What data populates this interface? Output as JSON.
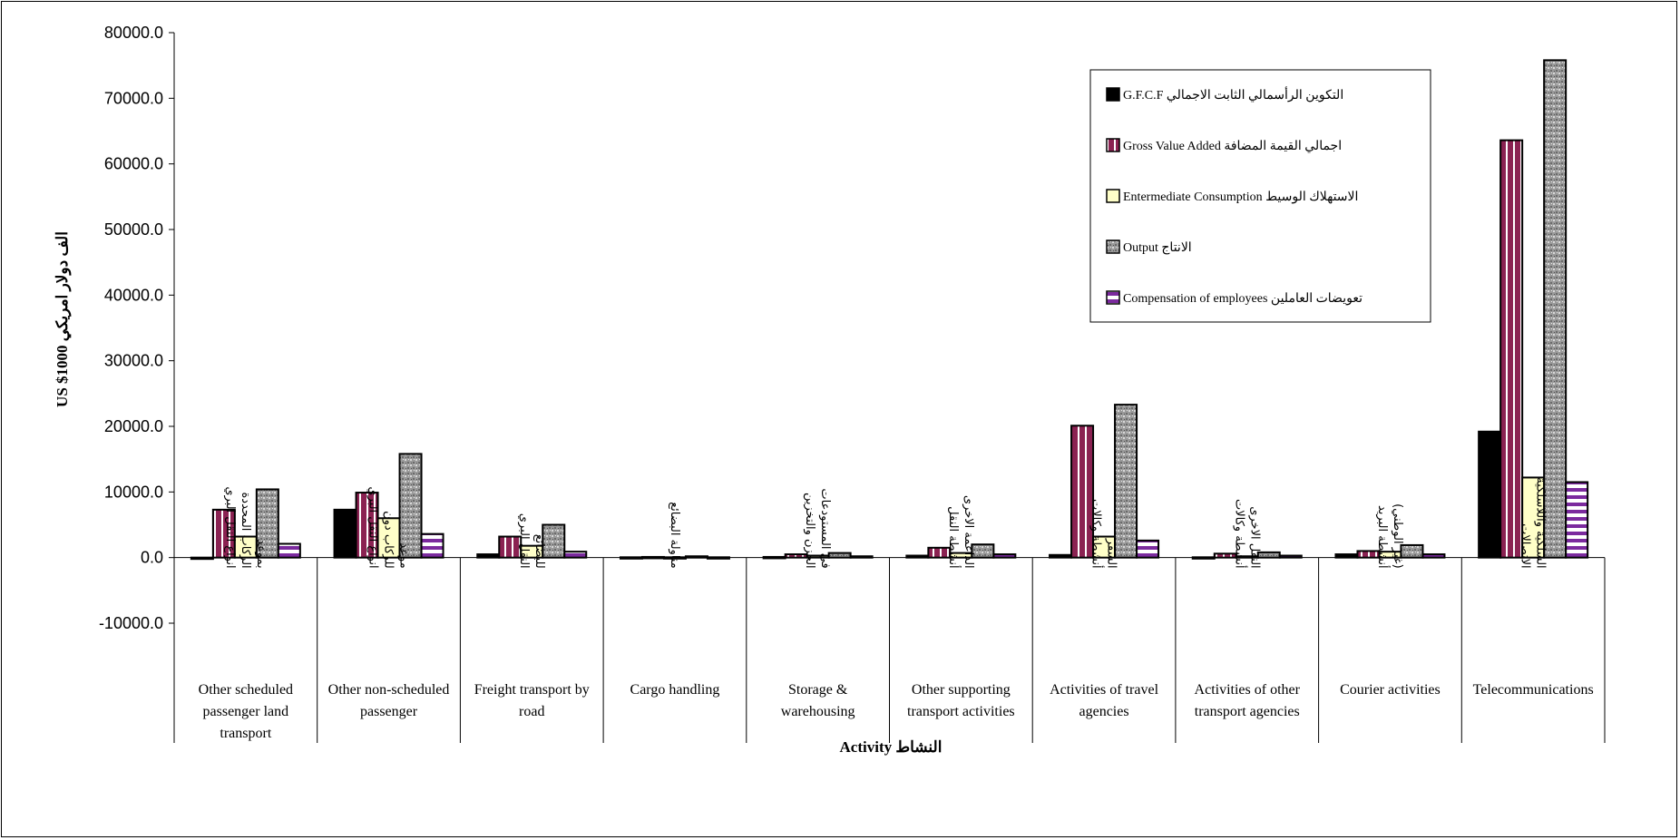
{
  "chart_data": {
    "type": "bar",
    "ylabel": "US $1000 الف دولار امريكي",
    "xlabel": "Activity النشاط",
    "ylim": [
      -10000,
      80000
    ],
    "yticks": [
      "80000.0",
      "70000.0",
      "60000.0",
      "50000.0",
      "40000.0",
      "30000.0",
      "20000.0",
      "10000.0",
      "0.0",
      "-10000.0"
    ],
    "categories": [
      {
        "en": [
          "Other scheduled",
          "passenger land",
          "transport"
        ],
        "ar": [
          "انواع النقل البري",
          "الركاب المحددة",
          "بموعد"
        ]
      },
      {
        "en": [
          "Other non-scheduled",
          "passenger"
        ],
        "ar": [
          "انواع النقل البري",
          "للركاب دون",
          "موعد"
        ]
      },
      {
        "en": [
          "Freight transport by",
          "road"
        ],
        "ar": [
          "النقل البري",
          "للبضائع"
        ]
      },
      {
        "en": [
          "Cargo handling"
        ],
        "ar": [
          "مناولة البضائع"
        ]
      },
      {
        "en": [
          "Storage &",
          "warehousing"
        ],
        "ar": [
          "الخزن والتخزين",
          "في المستودعات"
        ]
      },
      {
        "en": [
          "Other supporting",
          "transport activities"
        ],
        "ar": [
          "أنشطة النقل",
          "الداعمة الاخرى"
        ]
      },
      {
        "en": [
          "Activities of travel",
          "agencies"
        ],
        "ar": [
          "أنشطة وكالات",
          "السفر"
        ]
      },
      {
        "en": [
          "Activities of other",
          "transport agencies"
        ],
        "ar": [
          "أنشطة وكالات",
          "النقل الاخرى"
        ]
      },
      {
        "en": [
          "Courier activities"
        ],
        "ar": [
          "أنشطة البريد",
          "(غير الوطني)"
        ]
      },
      {
        "en": [
          "Telecommunications"
        ],
        "ar": [
          "الاتصالات",
          "السلكية واللاسلكية"
        ]
      }
    ],
    "series": [
      {
        "name": "G.F.C.F التكوين الرأسمالي الثابت الاجمالي",
        "pattern": "solid-black",
        "values": [
          0,
          7300,
          500,
          50,
          100,
          300,
          400,
          50,
          500,
          19200
        ]
      },
      {
        "name": "Gross Value Added اجمالي القيمة المضافة",
        "pattern": "maroon-vertical-stripes",
        "values": [
          7300,
          9900,
          3200,
          100,
          500,
          1500,
          20100,
          600,
          1000,
          63600
        ]
      },
      {
        "name": "Entermediate Consumption الاستهلاك الوسيط",
        "pattern": "light-yellow",
        "values": [
          3200,
          6000,
          1800,
          50,
          300,
          700,
          3200,
          200,
          900,
          12200
        ]
      },
      {
        "name": "Output الانتاج",
        "pattern": "gray-texture",
        "values": [
          10400,
          15800,
          5000,
          200,
          700,
          2000,
          23300,
          800,
          1900,
          75800
        ]
      },
      {
        "name": "Compensation of employees تعويضات العاملين",
        "pattern": "purple-horizontal-stripes",
        "values": [
          2100,
          3600,
          900,
          50,
          200,
          500,
          2600,
          300,
          500,
          11500
        ]
      }
    ],
    "legend_position": "top-right",
    "grid": false
  },
  "colors": {
    "gfcf": "#000000",
    "gva": "#8b2252",
    "ic": "#ffffc8",
    "output": "#a0a0a0",
    "comp": "#7b2a9e"
  }
}
